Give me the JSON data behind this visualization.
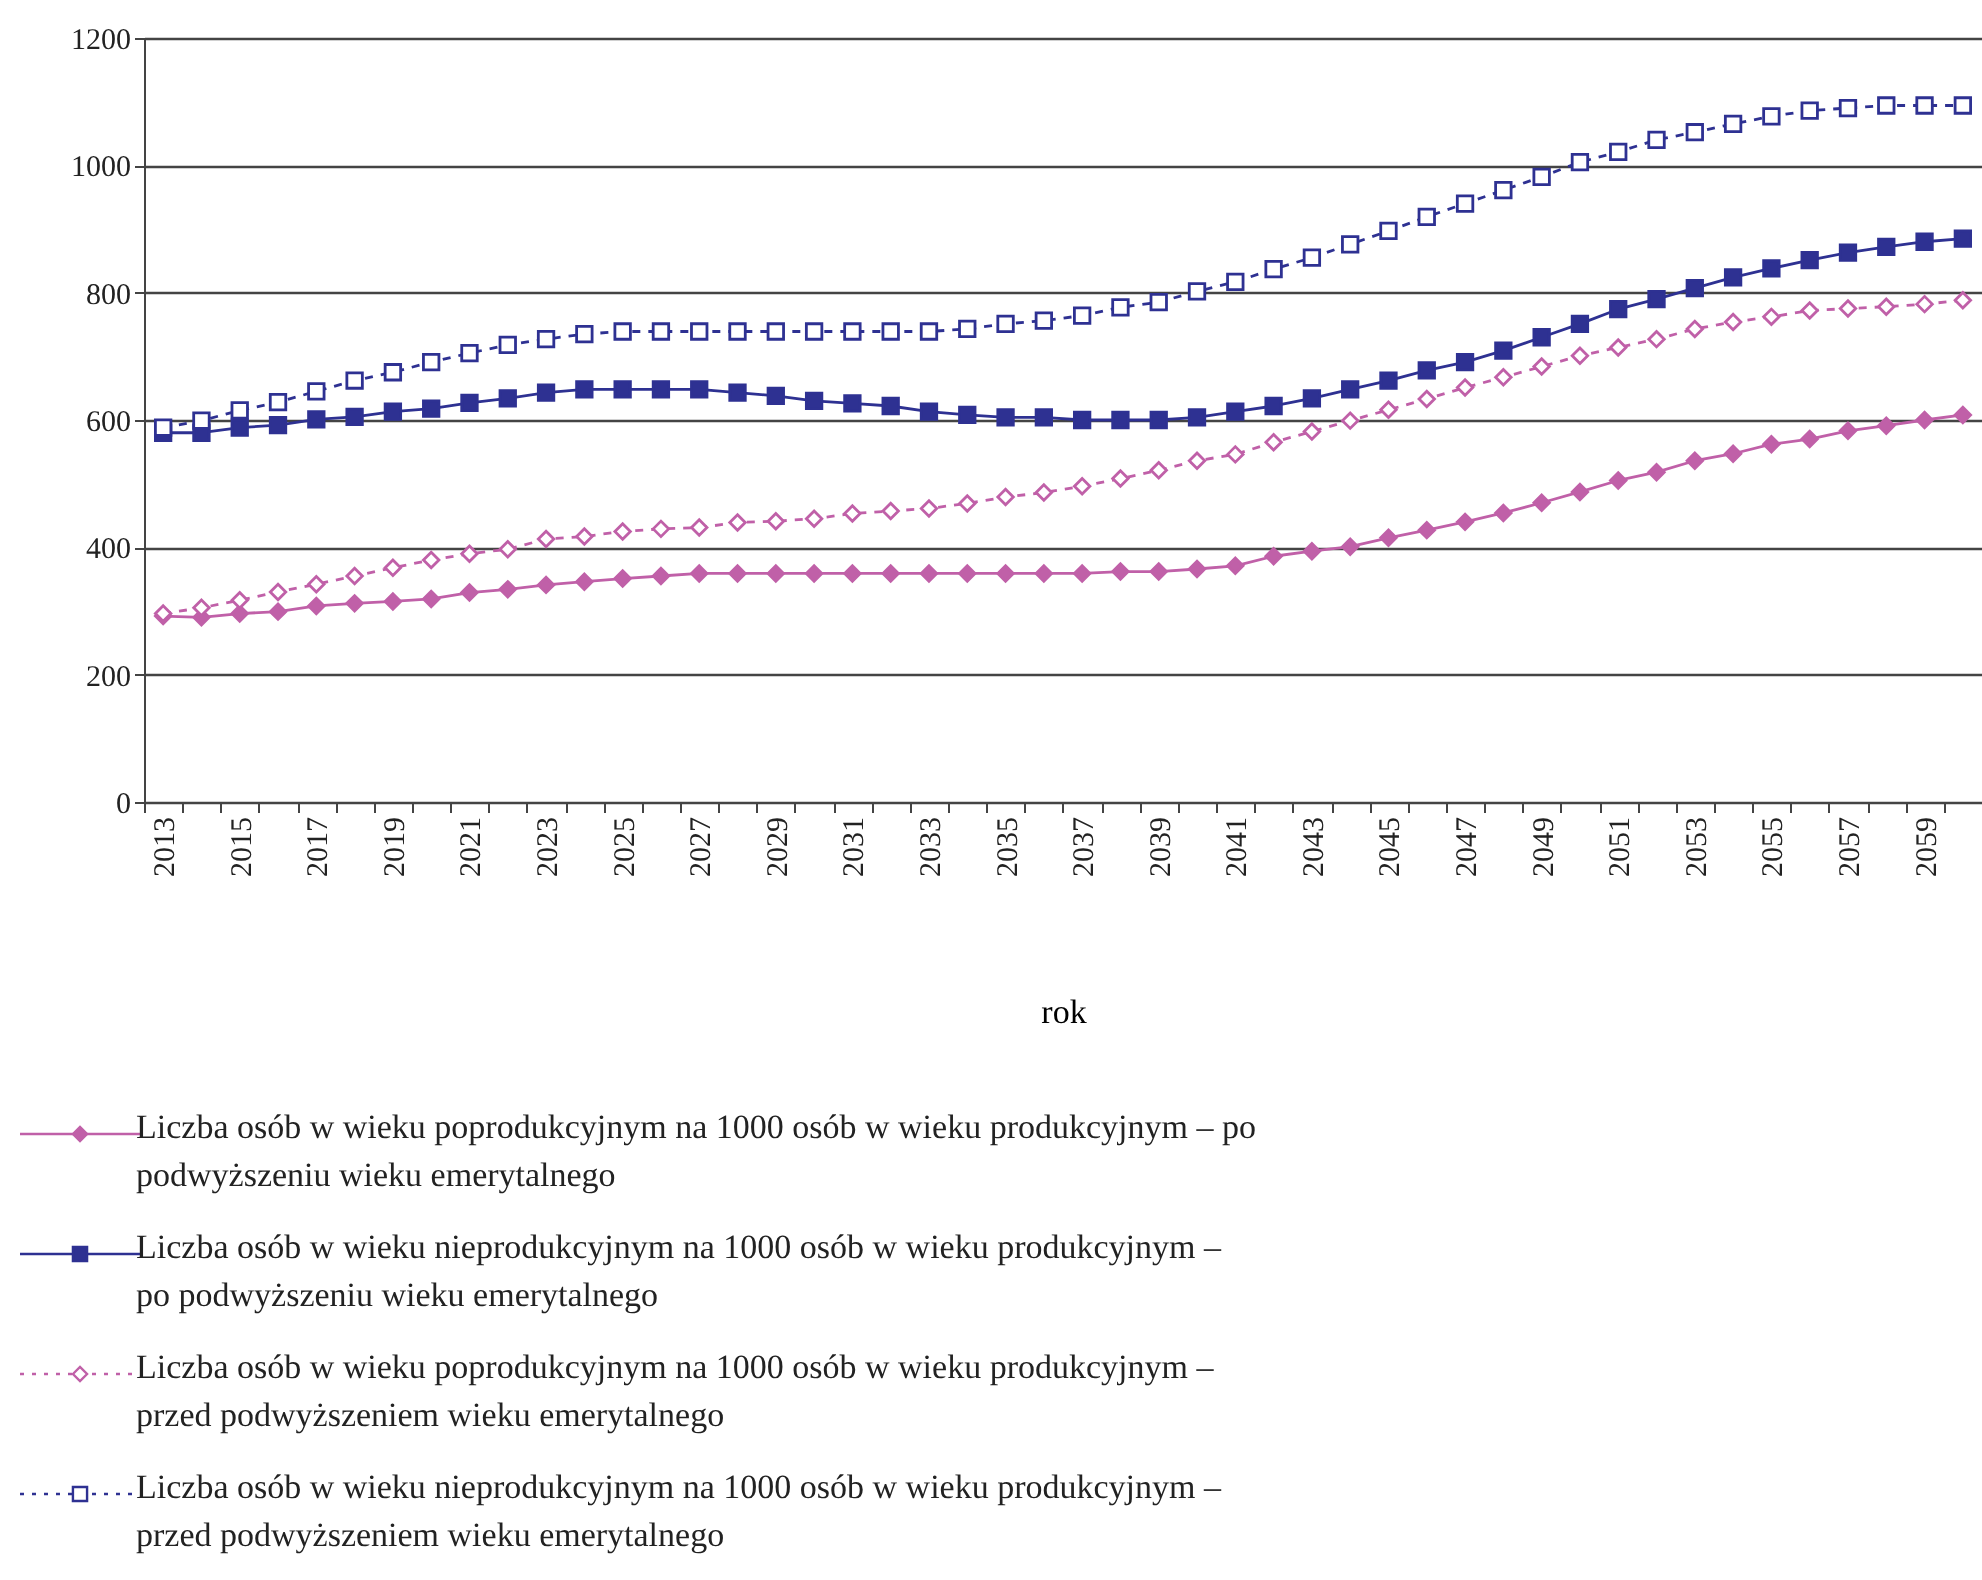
{
  "chart_data": {
    "type": "line",
    "xlabel": "rok",
    "categories": [
      "2013",
      null,
      "2015",
      null,
      "2017",
      null,
      "2019",
      null,
      "2021",
      null,
      "2023",
      null,
      "2025",
      null,
      "2027",
      null,
      "2029",
      null,
      "2031",
      null,
      "2033",
      null,
      "2035",
      null,
      "2037",
      null,
      "2039",
      null,
      "2041",
      null,
      "2043",
      null,
      "2045",
      null,
      "2047",
      null,
      "2049",
      null,
      "2051",
      null,
      "2053",
      null,
      "2055",
      null,
      "2057",
      null,
      "2059",
      null
    ],
    "ylim": [
      0,
      1200
    ],
    "yticks": [
      0,
      200,
      400,
      600,
      800,
      1000,
      1200
    ],
    "grid": "y",
    "legend": "bottom",
    "series": [
      {
        "name": "Liczba osób w wieku poprodukcyjnym na 1000 osób w wieku produkcyjnym – po podwyższeniu wieku emerytalnego",
        "color": "#c060a8",
        "marker": "diamond",
        "line_style": "solid",
        "values": [
          292,
          290,
          296,
          299,
          308,
          312,
          315,
          319,
          329,
          334,
          341,
          346,
          351,
          355,
          359,
          359,
          359,
          359,
          359,
          359,
          359,
          359,
          359,
          359,
          359,
          362,
          362,
          366,
          371,
          386,
          394,
          401,
          415,
          427,
          440,
          454,
          470,
          487,
          505,
          518,
          536,
          547,
          562,
          570,
          583,
          591,
          600,
          608
        ]
      },
      {
        "name": "Liczba osób w wieku nieprodukcyjnym na 1000 osób w wieku produkcyjnym – po podwyższeniu wieku emerytalnego",
        "color": "#2e3192",
        "marker": "square",
        "line_style": "solid",
        "values": [
          580,
          580,
          588,
          592,
          601,
          605,
          613,
          618,
          627,
          634,
          643,
          648,
          648,
          648,
          648,
          643,
          638,
          630,
          626,
          622,
          613,
          608,
          604,
          604,
          600,
          600,
          600,
          604,
          613,
          622,
          634,
          648,
          662,
          678,
          691,
          709,
          730,
          751,
          774,
          790,
          807,
          824,
          838,
          851,
          863,
          872,
          880,
          885
        ]
      },
      {
        "name": "Liczba osób w wieku poprodukcyjnym na 1000 osób w wieku produkcyjnym – przed podwyższeniem wieku emerytalnego",
        "color": "#c060a8",
        "marker": "diamond",
        "line_style": "dashed",
        "values": [
          296,
          305,
          317,
          330,
          342,
          355,
          368,
          380,
          390,
          397,
          413,
          417,
          425,
          429,
          431,
          439,
          441,
          445,
          453,
          457,
          461,
          469,
          479,
          486,
          496,
          508,
          521,
          536,
          546,
          565,
          582,
          599,
          616,
          633,
          651,
          667,
          684,
          701,
          714,
          727,
          743,
          754,
          762,
          772,
          775,
          778,
          782,
          788
        ]
      },
      {
        "name": "Liczba osób w wieku nieprodukcyjnym na 1000 osób w wieku produkcyjnym – przed podwyższeniem wieku emerytalnego",
        "color": "#2e3192",
        "marker": "square",
        "line_style": "dashed",
        "values": [
          588,
          599,
          615,
          628,
          645,
          662,
          675,
          691,
          705,
          718,
          727,
          735,
          739,
          739,
          739,
          739,
          739,
          739,
          739,
          739,
          739,
          743,
          751,
          756,
          764,
          777,
          785,
          802,
          817,
          837,
          855,
          876,
          897,
          919,
          940,
          961,
          982,
          1005,
          1021,
          1040,
          1052,
          1065,
          1077,
          1086,
          1090,
          1094,
          1094,
          1094
        ]
      }
    ]
  }
}
